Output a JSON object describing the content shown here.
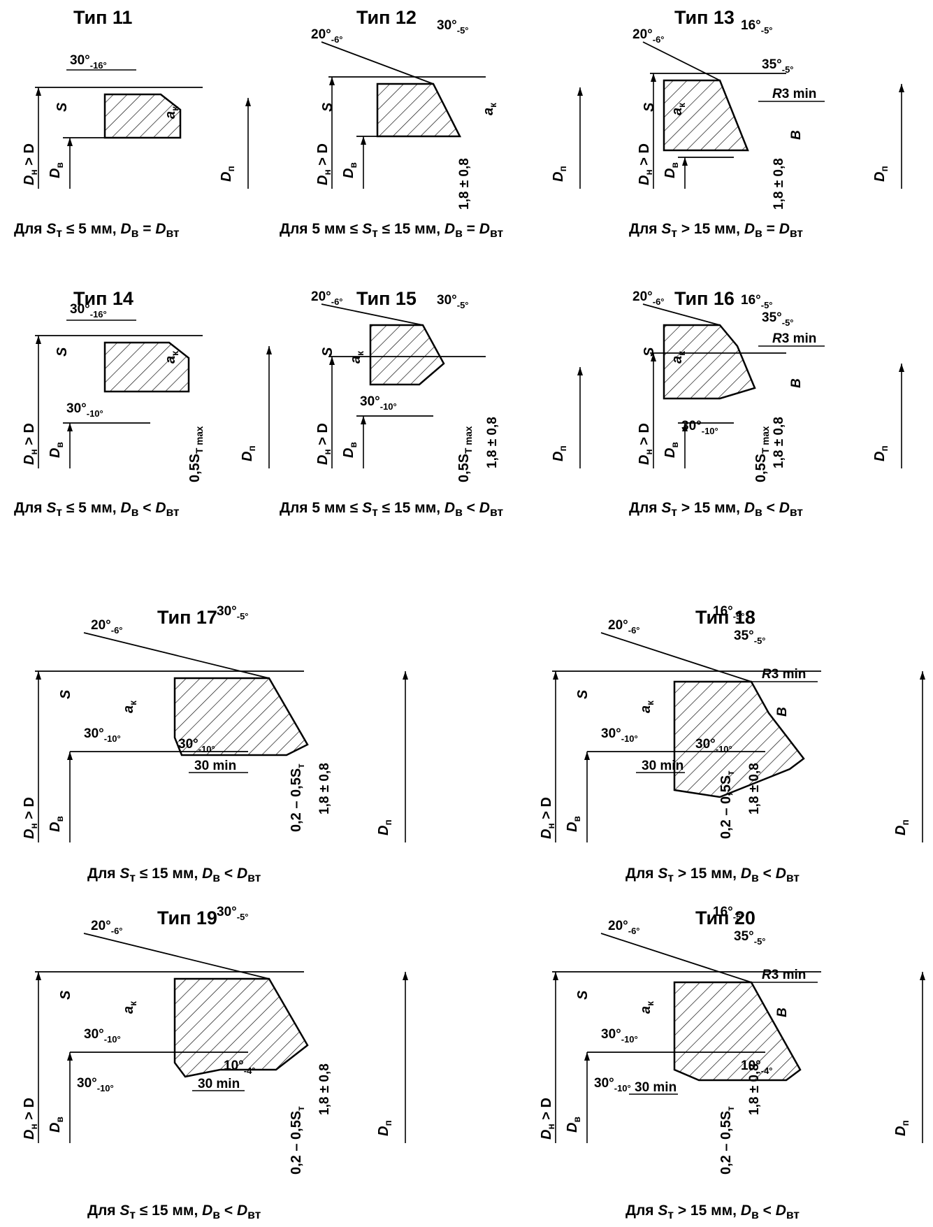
{
  "panels": [
    {
      "id": "11",
      "title": "Тип 11",
      "caption": {
        "s_rel": "≤ 5 мм,",
        "d_rel": "="
      },
      "angle1": "30°",
      "angle1_tol": "-16°"
    },
    {
      "id": "12",
      "title": "Тип 12",
      "caption": {
        "pre": "5 мм ≤",
        "s_rel": "≤ 15 мм,",
        "d_rel": "="
      },
      "angle1": "20°",
      "angle1_tol": "-6°",
      "angle2": "30°",
      "angle2_tol": "-5°",
      "dim": "1,8 ± 0,8"
    },
    {
      "id": "13",
      "title": "Тип 13",
      "caption": {
        "s_rel": "> 15 мм,",
        "d_rel": "="
      },
      "angle1": "20°",
      "angle1_tol": "-6°",
      "angle2": "16°",
      "angle2_tol": "-5°",
      "angle3": "35°",
      "angle3_tol": "-5°",
      "radius": "R3 min",
      "dim": "1,8 ± 0,8",
      "b": "B"
    },
    {
      "id": "14",
      "title": "Тип 14",
      "caption": {
        "s_rel": "≤ 5 мм,",
        "d_rel": "<"
      },
      "angle1": "30°",
      "angle1_tol": "-16°",
      "angle4": "30°",
      "angle4_tol": "-10°",
      "dim2": "0,5S",
      "dim2_sub": "T max"
    },
    {
      "id": "15",
      "title": "Тип 15",
      "caption": {
        "pre": "5 мм ≤",
        "s_rel": "≤ 15 мм,",
        "d_rel": "<"
      },
      "angle1": "20°",
      "angle1_tol": "-6°",
      "angle2": "30°",
      "angle2_tol": "-5°",
      "angle4": "30°",
      "angle4_tol": "-10°",
      "dim": "1,8 ± 0,8",
      "dim2": "0,5S",
      "dim2_sub": "T max"
    },
    {
      "id": "16",
      "title": "Тип 16",
      "caption": {
        "s_rel": "> 15 мм,",
        "d_rel": "<"
      },
      "angle1": "20°",
      "angle1_tol": "-6°",
      "angle2": "16°",
      "angle2_tol": "-5°",
      "angle3": "35°",
      "angle3_tol": "-5°",
      "radius": "R3 min",
      "angle4": "30°",
      "angle4_tol": "-10°",
      "dim": "1,8 ± 0,8",
      "dim2": "0,5S",
      "dim2_sub": "T max",
      "b": "B"
    },
    {
      "id": "17",
      "title": "Тип 17",
      "caption": {
        "s_rel": "≤ 15 мм,",
        "d_rel": "<"
      },
      "angle1": "20°",
      "angle1_tol": "-6°",
      "angle2": "30°",
      "angle2_tol": "-5°",
      "angle4": "30°",
      "angle4_tol": "-10°",
      "angle5": "30°",
      "angle5_tol": "-10°",
      "min": "30 min",
      "dim": "1,8 ± 0,8",
      "dim3": "0,2 – 0,5S"
    },
    {
      "id": "18",
      "title": "Тип 18",
      "caption": {
        "s_rel": "> 15 мм,",
        "d_rel": "<"
      },
      "angle1": "20°",
      "angle1_tol": "-6°",
      "angle2": "16°",
      "angle2_tol": "-5°",
      "angle3": "35°",
      "angle3_tol": "-5°",
      "radius": "R3 min",
      "angle4": "30°",
      "angle4_tol": "-10°",
      "angle5": "30°",
      "angle5_tol": "-10°",
      "min": "30 min",
      "dim": "1,8 ± 0,8",
      "dim3": "0,2 – 0,5S",
      "b": "B"
    },
    {
      "id": "19",
      "title": "Тип 19",
      "caption": {
        "s_rel": "≤ 15 мм,",
        "d_rel": "<"
      },
      "angle1": "20°",
      "angle1_tol": "-6°",
      "angle2": "30°",
      "angle2_tol": "-5°",
      "angle4": "30°",
      "angle4_tol": "-10°",
      "angle6": "30°",
      "angle6_tol": "-10°",
      "angle7": "10°",
      "angle7_tol": "-4°",
      "min": "30 min",
      "dim": "1,8 ± 0,8",
      "dim3": "0,2 – 0,5S"
    },
    {
      "id": "20",
      "title": "Тип 20",
      "caption": {
        "s_rel": "> 15 мм,",
        "d_rel": "<"
      },
      "angle1": "20°",
      "angle1_tol": "-6°",
      "angle2": "16°",
      "angle2_tol": "-5°",
      "angle3": "35°",
      "angle3_tol": "-5°",
      "radius": "R3 min",
      "angle4": "30°",
      "angle4_tol": "-10°",
      "angle6": "30°",
      "angle6_tol": "-10°",
      "angle7": "10°",
      "angle7_tol": "-4°",
      "min": "30 min",
      "dim": "1,8 ± 0,8",
      "dim3": "0,2 – 0,5S",
      "b": "B"
    }
  ],
  "labels": {
    "caption_prefix": "Для",
    "s": "S",
    "s_sub": "т",
    "db": "D",
    "db_sub": "в",
    "dbt": "D",
    "dbt_sub": "вт",
    "dn": "D",
    "dn_sub": "н",
    "dp": "D",
    "dp_sub": "п",
    "gt": ">",
    "thickness": "S",
    "ak": "a",
    "ak_sub": "к",
    "t_sub": "т"
  }
}
